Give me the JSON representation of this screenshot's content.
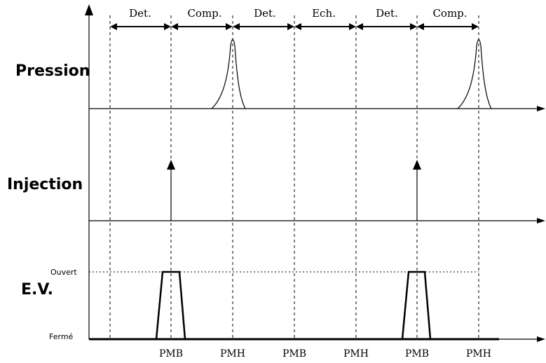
{
  "rows": {
    "pression": "Pression",
    "injection": "Injection",
    "ev": "E.V."
  },
  "levels": {
    "open": "Ouvert",
    "closed": "Fermé"
  },
  "phases": [
    {
      "label": "Det."
    },
    {
      "label": "Comp."
    },
    {
      "label": "Det."
    },
    {
      "label": "Ech."
    },
    {
      "label": "Det."
    },
    {
      "label": "Comp."
    }
  ],
  "positions": [
    {
      "label": "PMB"
    },
    {
      "label": "PMH"
    },
    {
      "label": "PMB"
    },
    {
      "label": "PMH"
    },
    {
      "label": "PMB"
    },
    {
      "label": "PMH"
    }
  ]
}
